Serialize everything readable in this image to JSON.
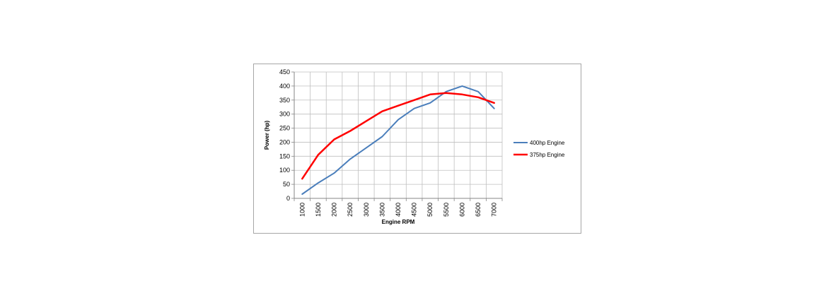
{
  "chart_data": {
    "type": "line",
    "title": "",
    "xlabel": "Engine RPM",
    "ylabel": "Power (hp)",
    "x": [
      1000,
      1500,
      2000,
      2500,
      3000,
      3500,
      4000,
      4500,
      5000,
      5500,
      6000,
      6500,
      7000
    ],
    "ylim": [
      0,
      450
    ],
    "yticks": [
      0,
      50,
      100,
      150,
      200,
      250,
      300,
      350,
      400,
      450
    ],
    "grid": true,
    "legend": "right",
    "series": [
      {
        "name": "400hp Engine",
        "color": "#4a7ebb",
        "values": [
          15,
          55,
          90,
          140,
          180,
          220,
          280,
          320,
          340,
          380,
          400,
          380,
          320
        ]
      },
      {
        "name": "375hp Engine",
        "color": "#ff0000",
        "values": [
          70,
          155,
          210,
          240,
          275,
          310,
          330,
          350,
          370,
          375,
          370,
          360,
          340
        ]
      }
    ]
  }
}
